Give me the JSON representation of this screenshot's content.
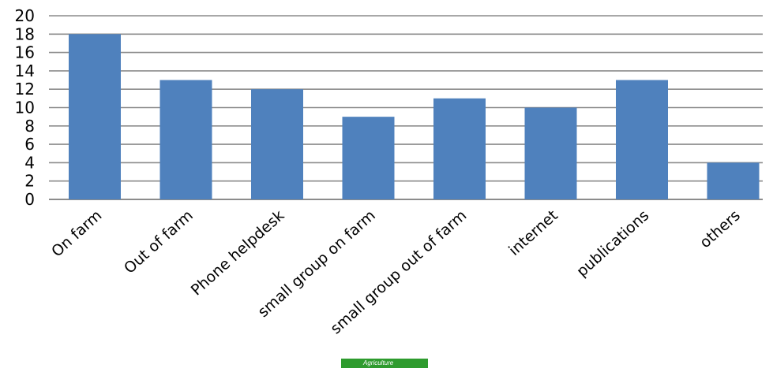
{
  "chart_data": {
    "type": "bar",
    "categories": [
      "On farm",
      "Out of farm",
      "Phone helpdesk",
      "small group on farm",
      "small group out of farm",
      "internet",
      "publications",
      "others"
    ],
    "values": [
      18,
      13,
      12,
      9,
      11,
      10,
      13,
      4
    ],
    "title": "",
    "xlabel": "",
    "ylabel": "",
    "ylim": [
      0,
      20
    ],
    "yticks": [
      0,
      2,
      4,
      6,
      8,
      10,
      12,
      14,
      16,
      18,
      20
    ],
    "grid": true,
    "legend": "none",
    "colors": {
      "bar": "#4f81bd",
      "gridline": "#8c8c8c",
      "text": "#000000"
    }
  },
  "badge": {
    "text": "Agriculture",
    "color": "#2e9b2e"
  }
}
